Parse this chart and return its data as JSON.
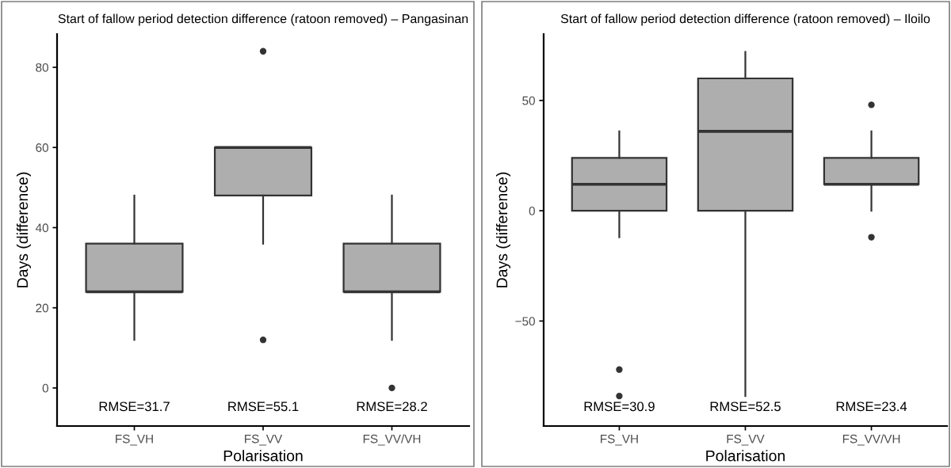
{
  "chart_data": [
    {
      "type": "box",
      "title": "Start of fallow period detection difference (ratoon removed) – Pangasinan",
      "xlabel": "Polarisation",
      "ylabel": "Days (difference)",
      "categories": [
        "FS_VH",
        "FS_VV",
        "FS_VV/VH"
      ],
      "color": "#aeaeae",
      "boxes": [
        {
          "low": 12,
          "q1": 24,
          "median": 24,
          "q3": 36,
          "high": 48
        },
        {
          "low": 36,
          "q1": 48,
          "median": 60,
          "q3": 60,
          "high": 60,
          "outliers": [
            84,
            12
          ]
        },
        {
          "low": 12,
          "q1": 24,
          "median": 24,
          "q3": 36,
          "high": 48,
          "outliers": [
            0
          ]
        }
      ],
      "ylim": [
        -9.5,
        88.3
      ],
      "yticks": [
        0,
        20,
        40,
        60,
        80
      ],
      "grid": false,
      "legend": false,
      "annotations": [
        "RMSE=31.7",
        "RMSE=55.1",
        "RMSE=28.2"
      ]
    },
    {
      "type": "box",
      "title": "Start of fallow period detection difference (ratoon removed) – Iloilo",
      "xlabel": "Polarisation",
      "ylabel": "Days (difference)",
      "categories": [
        "FS_VH",
        "FS_VV",
        "FS_VV/VH"
      ],
      "color": "#aeaeae",
      "boxes": [
        {
          "low": -12,
          "q1": 0,
          "median": 12,
          "q3": 24,
          "high": 36,
          "outliers": [
            -72,
            -84
          ]
        },
        {
          "low": -84,
          "q1": 0,
          "median": 36,
          "q3": 60,
          "high": 72
        },
        {
          "low": 0,
          "q1": 12,
          "median": 12,
          "q3": 24,
          "high": 36,
          "outliers": [
            48,
            -12
          ]
        }
      ],
      "ylim": [
        -97.6,
        80.1
      ],
      "yticks": [
        {
          "value": -50,
          "label": "−50"
        },
        0,
        50
      ],
      "grid": false,
      "legend": false,
      "annotations": [
        "RMSE=30.9",
        "RMSE=52.5",
        "RMSE=23.4"
      ]
    }
  ]
}
